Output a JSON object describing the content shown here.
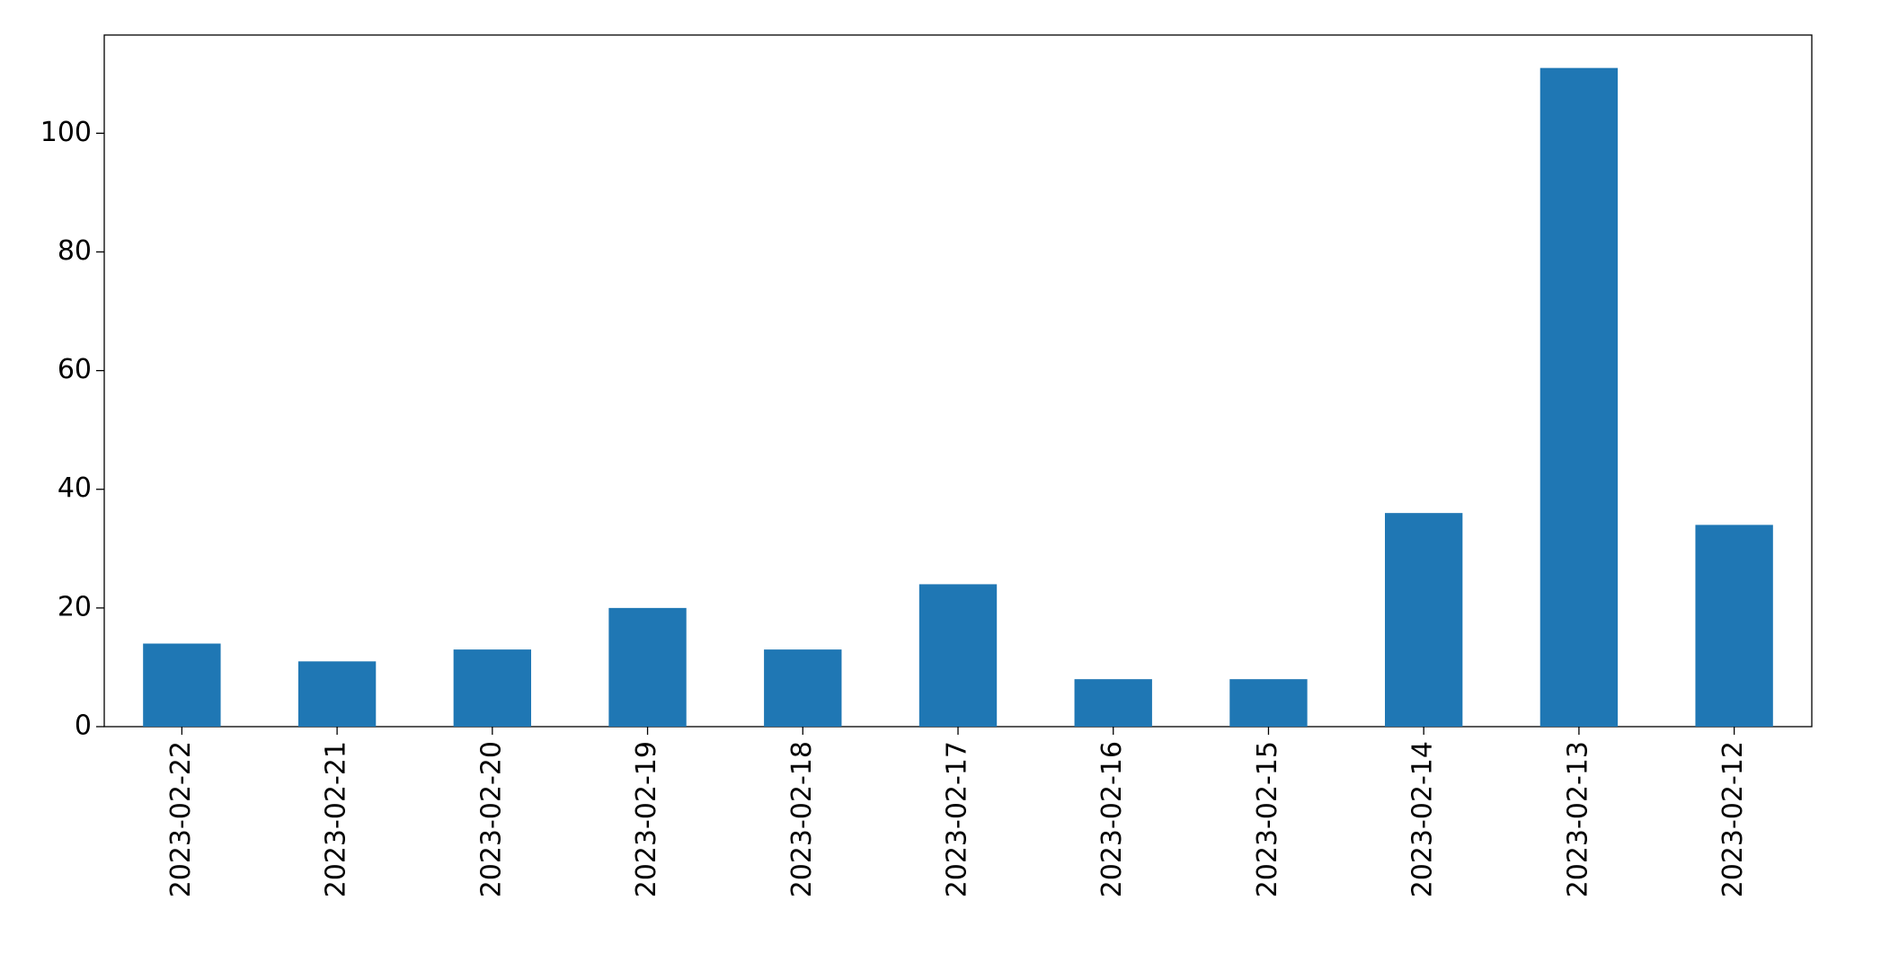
{
  "chart_data": {
    "type": "bar",
    "categories": [
      "2023-02-22",
      "2023-02-21",
      "2023-02-20",
      "2023-02-19",
      "2023-02-18",
      "2023-02-17",
      "2023-02-16",
      "2023-02-15",
      "2023-02-14",
      "2023-02-13",
      "2023-02-12"
    ],
    "values": [
      14,
      11,
      13,
      20,
      13,
      24,
      8,
      8,
      36,
      111,
      34
    ],
    "color": "#1f77b4",
    "ylim": [
      0,
      116.55
    ],
    "yticks": [
      0,
      20,
      40,
      60,
      80,
      100
    ],
    "grid": false
  }
}
